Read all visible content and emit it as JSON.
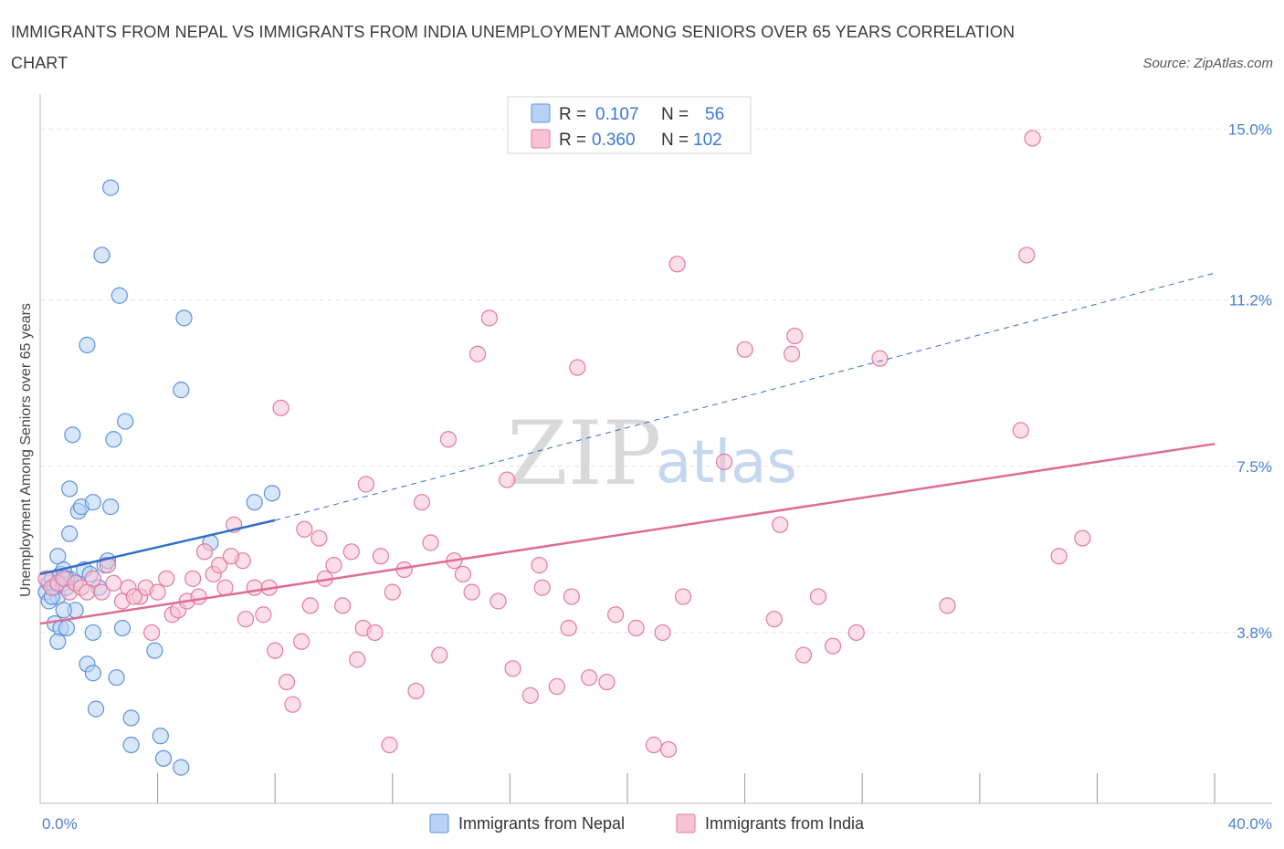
{
  "title": "IMMIGRANTS FROM NEPAL VS IMMIGRANTS FROM INDIA UNEMPLOYMENT AMONG SENIORS OVER 65 YEARS CORRELATION CHART",
  "source": "Source: ZipAtlas.com",
  "watermark": {
    "zip": "ZIP",
    "atlas": "atlas"
  },
  "colors": {
    "nepal_fill": "#b8d1f5",
    "nepal_stroke": "#5d92db",
    "nepal_line": "#2f6fc9",
    "india_fill": "#f7c3d3",
    "india_stroke": "#e07aa0",
    "india_line": "#e06b95",
    "grid": "#e3e3e3",
    "accent": "#4a7fd4"
  },
  "legend": {
    "rows": [
      {
        "r_label": "R =",
        "r_value": "0.107",
        "n_label": "N =",
        "n_value": "56"
      },
      {
        "r_label": "R =",
        "r_value": "0.360",
        "n_label": "N =",
        "n_value": "102"
      }
    ]
  },
  "chart_data": {
    "type": "scatter",
    "xlabel": "",
    "ylabel": "Unemployment Among Seniors over 65 years",
    "xlim": [
      0,
      40
    ],
    "ylim": [
      0,
      15.5
    ],
    "x_tick_labels": [
      "0.0%",
      "40.0%"
    ],
    "y_ticks": [
      3.8,
      7.5,
      11.2,
      15.0
    ],
    "y_tick_labels": [
      "3.8%",
      "7.5%",
      "11.2%",
      "15.0%"
    ],
    "grid": true,
    "legend_position": "top-center",
    "series": [
      {
        "name": "Immigrants from Nepal",
        "R": 0.107,
        "N": 56,
        "trend": {
          "x0": 0,
          "y0": 5.1,
          "x1": 8,
          "y1": 6.3,
          "dashed_to_x": 40,
          "dashed_to_y": 11.8
        },
        "points": [
          [
            0.2,
            4.7
          ],
          [
            0.3,
            4.9
          ],
          [
            0.4,
            5.0
          ],
          [
            0.5,
            4.8
          ],
          [
            0.6,
            4.6
          ],
          [
            0.7,
            5.1
          ],
          [
            0.8,
            4.9
          ],
          [
            0.9,
            4.8
          ],
          [
            1.0,
            5.0
          ],
          [
            0.3,
            4.5
          ],
          [
            0.5,
            4.0
          ],
          [
            0.7,
            3.9
          ],
          [
            0.9,
            3.9
          ],
          [
            1.2,
            4.3
          ],
          [
            0.6,
            3.6
          ],
          [
            0.8,
            4.3
          ],
          [
            1.5,
            5.2
          ],
          [
            1.7,
            5.1
          ],
          [
            2.0,
            4.8
          ],
          [
            2.2,
            5.3
          ],
          [
            0.6,
            5.5
          ],
          [
            0.8,
            5.2
          ],
          [
            1.0,
            6.0
          ],
          [
            1.3,
            6.5
          ],
          [
            1.4,
            6.6
          ],
          [
            1.8,
            6.7
          ],
          [
            2.4,
            6.6
          ],
          [
            1.0,
            7.0
          ],
          [
            2.5,
            8.1
          ],
          [
            1.1,
            8.2
          ],
          [
            2.9,
            8.5
          ],
          [
            4.8,
            9.2
          ],
          [
            1.6,
            10.2
          ],
          [
            4.9,
            10.8
          ],
          [
            2.7,
            11.3
          ],
          [
            2.1,
            12.2
          ],
          [
            2.4,
            13.7
          ],
          [
            1.8,
            3.8
          ],
          [
            2.8,
            3.9
          ],
          [
            3.9,
            3.4
          ],
          [
            1.6,
            3.1
          ],
          [
            1.8,
            2.9
          ],
          [
            2.6,
            2.8
          ],
          [
            1.9,
            2.1
          ],
          [
            3.1,
            1.9
          ],
          [
            4.1,
            1.5
          ],
          [
            3.1,
            1.3
          ],
          [
            4.2,
            1.0
          ],
          [
            4.8,
            0.8
          ],
          [
            7.3,
            6.7
          ],
          [
            7.9,
            6.9
          ],
          [
            5.8,
            5.8
          ],
          [
            2.3,
            5.4
          ],
          [
            1.2,
            4.9
          ],
          [
            0.4,
            4.6
          ],
          [
            0.9,
            5.0
          ]
        ]
      },
      {
        "name": "Immigrants from India",
        "R": 0.36,
        "N": 102,
        "trend": {
          "x0": 0,
          "y0": 4.0,
          "x1": 40,
          "y1": 8.0
        },
        "points": [
          [
            0.2,
            5.0
          ],
          [
            0.4,
            4.8
          ],
          [
            0.6,
            4.9
          ],
          [
            0.8,
            5.0
          ],
          [
            1.0,
            4.7
          ],
          [
            1.2,
            4.9
          ],
          [
            1.4,
            4.8
          ],
          [
            1.6,
            4.7
          ],
          [
            1.8,
            5.0
          ],
          [
            2.1,
            4.7
          ],
          [
            2.3,
            5.3
          ],
          [
            2.5,
            4.9
          ],
          [
            2.8,
            4.5
          ],
          [
            3.0,
            4.8
          ],
          [
            3.4,
            4.6
          ],
          [
            3.6,
            4.8
          ],
          [
            3.8,
            3.8
          ],
          [
            4.0,
            4.7
          ],
          [
            4.3,
            5.0
          ],
          [
            4.5,
            4.2
          ],
          [
            4.7,
            4.3
          ],
          [
            5.0,
            4.5
          ],
          [
            5.2,
            5.0
          ],
          [
            5.4,
            4.6
          ],
          [
            5.6,
            5.6
          ],
          [
            5.9,
            5.1
          ],
          [
            6.1,
            5.3
          ],
          [
            6.3,
            4.8
          ],
          [
            6.6,
            6.2
          ],
          [
            6.9,
            5.4
          ],
          [
            7.0,
            4.1
          ],
          [
            7.3,
            4.8
          ],
          [
            7.6,
            4.2
          ],
          [
            7.8,
            4.8
          ],
          [
            8.0,
            3.4
          ],
          [
            8.2,
            8.8
          ],
          [
            8.4,
            2.7
          ],
          [
            8.6,
            2.2
          ],
          [
            8.9,
            3.6
          ],
          [
            9.2,
            4.4
          ],
          [
            9.5,
            5.9
          ],
          [
            9.7,
            5.0
          ],
          [
            10.0,
            5.3
          ],
          [
            10.3,
            4.4
          ],
          [
            10.6,
            5.6
          ],
          [
            10.8,
            3.2
          ],
          [
            11.0,
            3.9
          ],
          [
            11.4,
            3.8
          ],
          [
            11.6,
            5.5
          ],
          [
            11.9,
            1.3
          ],
          [
            11.1,
            7.1
          ],
          [
            12.0,
            4.7
          ],
          [
            12.4,
            5.2
          ],
          [
            12.8,
            2.5
          ],
          [
            13.0,
            6.7
          ],
          [
            13.3,
            5.8
          ],
          [
            13.6,
            3.3
          ],
          [
            13.9,
            8.1
          ],
          [
            14.1,
            5.4
          ],
          [
            14.4,
            5.1
          ],
          [
            14.7,
            4.7
          ],
          [
            14.9,
            10.0
          ],
          [
            15.3,
            10.8
          ],
          [
            15.6,
            4.5
          ],
          [
            15.9,
            7.2
          ],
          [
            16.1,
            3.0
          ],
          [
            16.7,
            2.4
          ],
          [
            17.0,
            5.3
          ],
          [
            17.1,
            4.8
          ],
          [
            17.6,
            2.6
          ],
          [
            18.0,
            3.9
          ],
          [
            18.1,
            4.6
          ],
          [
            18.3,
            9.7
          ],
          [
            18.7,
            2.8
          ],
          [
            19.3,
            2.7
          ],
          [
            19.6,
            4.2
          ],
          [
            20.3,
            3.9
          ],
          [
            20.9,
            1.3
          ],
          [
            21.2,
            3.8
          ],
          [
            21.4,
            1.2
          ],
          [
            21.7,
            12.0
          ],
          [
            21.9,
            4.6
          ],
          [
            23.3,
            7.6
          ],
          [
            24.0,
            10.1
          ],
          [
            25.0,
            4.1
          ],
          [
            25.2,
            6.2
          ],
          [
            25.6,
            10.0
          ],
          [
            25.7,
            10.4
          ],
          [
            26.0,
            3.3
          ],
          [
            26.5,
            4.6
          ],
          [
            27.0,
            3.5
          ],
          [
            27.8,
            3.8
          ],
          [
            28.6,
            9.9
          ],
          [
            30.9,
            4.4
          ],
          [
            33.4,
            8.3
          ],
          [
            33.6,
            12.2
          ],
          [
            33.8,
            14.8
          ],
          [
            34.7,
            5.5
          ],
          [
            35.5,
            5.9
          ],
          [
            9.0,
            6.1
          ],
          [
            6.5,
            5.5
          ],
          [
            3.2,
            4.6
          ]
        ]
      }
    ]
  }
}
